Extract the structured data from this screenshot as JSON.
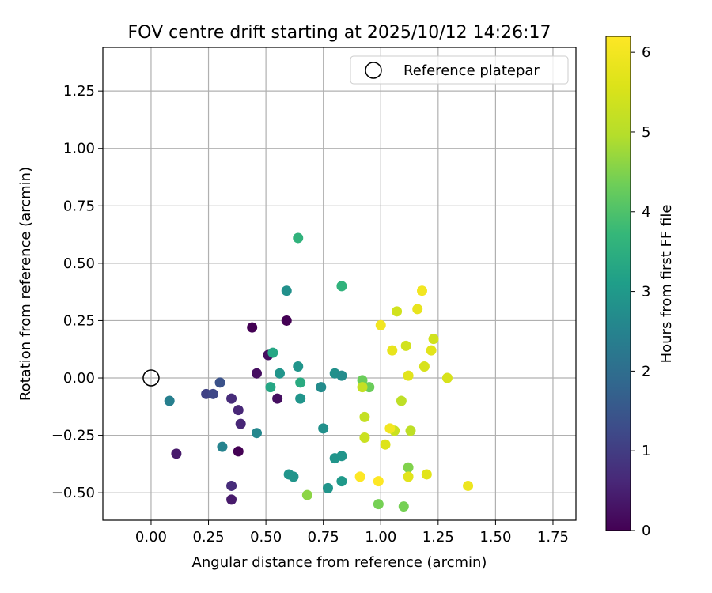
{
  "chart_data": {
    "type": "scatter",
    "title": "FOV centre drift starting at 2025/10/12 14:26:17",
    "xlabel": "Angular distance from reference (arcmin)",
    "ylabel": "Rotation from reference (arcmin)",
    "xlim": [
      -0.21,
      1.85
    ],
    "ylim": [
      -0.62,
      1.44
    ],
    "xticks": [
      0.0,
      0.25,
      0.5,
      0.75,
      1.0,
      1.25,
      1.5,
      1.75
    ],
    "xtick_labels": [
      "0.00",
      "0.25",
      "0.50",
      "0.75",
      "1.00",
      "1.25",
      "1.50",
      "1.75"
    ],
    "yticks": [
      -0.5,
      -0.25,
      0.0,
      0.25,
      0.5,
      0.75,
      1.0,
      1.25
    ],
    "ytick_labels": [
      "−0.50",
      "−0.25",
      "0.00",
      "0.25",
      "0.50",
      "0.75",
      "1.00",
      "1.25"
    ],
    "grid": true,
    "legend": {
      "label": "Reference platepar",
      "placement": "top-right"
    },
    "reference_point": {
      "x": 0.0,
      "y": 0.0
    },
    "colorbar": {
      "label": "Hours from first FF file",
      "range": [
        0,
        6.2
      ],
      "ticks": [
        0,
        1,
        2,
        3,
        4,
        5,
        6
      ],
      "tick_labels": [
        "0",
        "1",
        "2",
        "3",
        "4",
        "5",
        "6"
      ],
      "colormap": "viridis"
    },
    "series": [
      {
        "name": "FOV centre",
        "points": [
          {
            "x": 0.44,
            "y": 0.22,
            "h": 0.0
          },
          {
            "x": 0.59,
            "y": 0.25,
            "h": 0.0
          },
          {
            "x": 0.38,
            "y": -0.32,
            "h": 0.0
          },
          {
            "x": 0.46,
            "y": 0.02,
            "h": 0.2
          },
          {
            "x": 0.51,
            "y": 0.1,
            "h": 0.2
          },
          {
            "x": 0.55,
            "y": -0.09,
            "h": 0.2
          },
          {
            "x": 0.11,
            "y": -0.33,
            "h": 0.4
          },
          {
            "x": 0.35,
            "y": -0.53,
            "h": 0.4
          },
          {
            "x": 0.38,
            "y": -0.14,
            "h": 0.6
          },
          {
            "x": 0.39,
            "y": -0.2,
            "h": 0.6
          },
          {
            "x": 0.35,
            "y": -0.09,
            "h": 0.7
          },
          {
            "x": 0.35,
            "y": -0.47,
            "h": 0.7
          },
          {
            "x": 0.24,
            "y": -0.07,
            "h": 1.1
          },
          {
            "x": 0.27,
            "y": -0.07,
            "h": 1.2
          },
          {
            "x": 0.3,
            "y": -0.02,
            "h": 1.4
          },
          {
            "x": 0.08,
            "y": -0.1,
            "h": 2.4
          },
          {
            "x": 0.31,
            "y": -0.3,
            "h": 2.5
          },
          {
            "x": 0.46,
            "y": -0.24,
            "h": 2.6
          },
          {
            "x": 0.59,
            "y": 0.38,
            "h": 2.8
          },
          {
            "x": 0.74,
            "y": -0.04,
            "h": 2.7
          },
          {
            "x": 0.75,
            "y": -0.22,
            "h": 2.8
          },
          {
            "x": 0.8,
            "y": 0.02,
            "h": 2.8
          },
          {
            "x": 0.83,
            "y": 0.01,
            "h": 2.7
          },
          {
            "x": 0.64,
            "y": 0.05,
            "h": 2.9
          },
          {
            "x": 0.65,
            "y": -0.09,
            "h": 2.9
          },
          {
            "x": 0.56,
            "y": 0.02,
            "h": 2.9
          },
          {
            "x": 0.8,
            "y": -0.35,
            "h": 2.9
          },
          {
            "x": 0.83,
            "y": -0.34,
            "h": 2.9
          },
          {
            "x": 0.6,
            "y": -0.42,
            "h": 2.9
          },
          {
            "x": 0.62,
            "y": -0.43,
            "h": 2.9
          },
          {
            "x": 0.77,
            "y": -0.48,
            "h": 2.9
          },
          {
            "x": 0.83,
            "y": -0.45,
            "h": 3.0
          },
          {
            "x": 0.52,
            "y": -0.04,
            "h": 3.3
          },
          {
            "x": 0.53,
            "y": 0.11,
            "h": 3.3
          },
          {
            "x": 0.65,
            "y": -0.02,
            "h": 3.4
          },
          {
            "x": 0.64,
            "y": 0.61,
            "h": 3.6
          },
          {
            "x": 0.83,
            "y": 0.4,
            "h": 3.6
          },
          {
            "x": 0.92,
            "y": -0.01,
            "h": 4.3
          },
          {
            "x": 0.95,
            "y": -0.04,
            "h": 4.3
          },
          {
            "x": 0.99,
            "y": -0.55,
            "h": 4.4
          },
          {
            "x": 1.1,
            "y": -0.56,
            "h": 4.4
          },
          {
            "x": 1.12,
            "y": -0.39,
            "h": 4.5
          },
          {
            "x": 0.68,
            "y": -0.51,
            "h": 4.6
          },
          {
            "x": 1.09,
            "y": -0.1,
            "h": 5.1
          },
          {
            "x": 1.13,
            "y": -0.23,
            "h": 5.1
          },
          {
            "x": 0.92,
            "y": -0.04,
            "h": 5.2
          },
          {
            "x": 0.93,
            "y": -0.17,
            "h": 5.2
          },
          {
            "x": 0.93,
            "y": -0.26,
            "h": 5.3
          },
          {
            "x": 1.06,
            "y": -0.23,
            "h": 5.3
          },
          {
            "x": 1.11,
            "y": 0.14,
            "h": 5.4
          },
          {
            "x": 1.07,
            "y": 0.29,
            "h": 5.4
          },
          {
            "x": 1.23,
            "y": 0.17,
            "h": 5.4
          },
          {
            "x": 1.19,
            "y": 0.05,
            "h": 5.5
          },
          {
            "x": 1.29,
            "y": 0.0,
            "h": 5.5
          },
          {
            "x": 1.02,
            "y": -0.29,
            "h": 5.6
          },
          {
            "x": 1.12,
            "y": -0.43,
            "h": 5.7
          },
          {
            "x": 1.2,
            "y": -0.42,
            "h": 5.7
          },
          {
            "x": 1.12,
            "y": 0.01,
            "h": 5.7
          },
          {
            "x": 1.22,
            "y": 0.12,
            "h": 5.7
          },
          {
            "x": 1.05,
            "y": 0.12,
            "h": 5.8
          },
          {
            "x": 1.16,
            "y": 0.3,
            "h": 5.8
          },
          {
            "x": 1.38,
            "y": -0.47,
            "h": 5.9
          },
          {
            "x": 1.04,
            "y": -0.22,
            "h": 6.0
          },
          {
            "x": 1.0,
            "y": 0.23,
            "h": 6.0
          },
          {
            "x": 1.18,
            "y": 0.38,
            "h": 6.0
          },
          {
            "x": 0.91,
            "y": -0.43,
            "h": 6.2
          },
          {
            "x": 0.99,
            "y": -0.45,
            "h": 6.2
          }
        ]
      }
    ]
  }
}
